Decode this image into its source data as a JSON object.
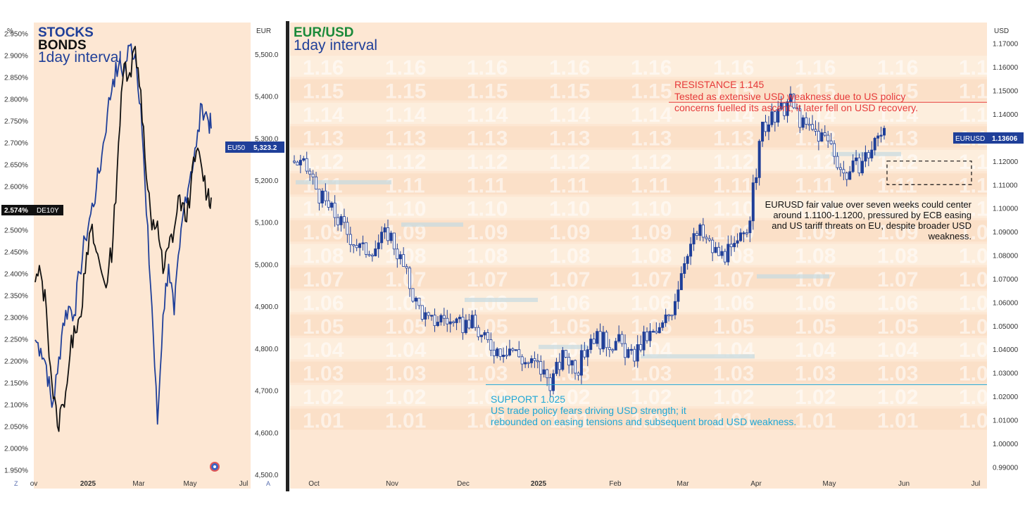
{
  "left_panel": {
    "stocks_label": "STOCKS",
    "bonds_label": "BONDS",
    "interval_label": "1day interval",
    "left_axis_unit": "%",
    "right_axis_unit": "EUR",
    "left_axis_ticks": [
      "2.950%",
      "2.900%",
      "2.850%",
      "2.800%",
      "2.750%",
      "2.700%",
      "2.650%",
      "2.600%",
      "2.550%",
      "2.500%",
      "2.450%",
      "2.400%",
      "2.350%",
      "2.300%",
      "2.250%",
      "2.200%",
      "2.150%",
      "2.100%",
      "2.050%",
      "2.000%",
      "1.950%"
    ],
    "right_axis_ticks": [
      "5,500.0",
      "5,400.0",
      "5,300.0",
      "5,200.0",
      "5,100.0",
      "5,000.0",
      "4,900.0",
      "4,800.0",
      "4,700.0",
      "4,600.0",
      "4,500.0"
    ],
    "x_ticks": [
      "ov",
      "2025",
      "Mar",
      "May",
      "Jul"
    ],
    "corner_left": "Z",
    "corner_right": "A",
    "bond_badge": {
      "value": "2.574%",
      "ticker": "DE10Y"
    },
    "stock_badge": {
      "ticker": "EU50",
      "value": "5,323.2"
    },
    "colors": {
      "stocks": "#1f3f99",
      "bonds": "#111111",
      "background": "#fde7d3"
    }
  },
  "right_panel": {
    "title": "EUR/USD",
    "interval_label": "1day interval",
    "axis_unit": "USD",
    "axis_ticks": [
      "1.17000",
      "1.16000",
      "1.15000",
      "1.14000",
      "1.13000",
      "1.12000",
      "1.11000",
      "1.10000",
      "1.09000",
      "1.08000",
      "1.07000",
      "1.06000",
      "1.05000",
      "1.04000",
      "1.03000",
      "1.02000",
      "1.01000",
      "1.00000",
      "0.99000"
    ],
    "x_ticks": [
      "Oct",
      "Nov",
      "Dec",
      "2025",
      "Feb",
      "Mar",
      "Apr",
      "May",
      "Jun",
      "Jul"
    ],
    "watermark_levels": [
      "1.16",
      "1.15",
      "1.14",
      "1.13",
      "1.12",
      "1.11",
      "1.10",
      "1.09",
      "1.08",
      "1.07",
      "1.06",
      "1.05",
      "1.04",
      "1.03",
      "1.02",
      "1.01"
    ],
    "price_badge": {
      "ticker": "EURUSD",
      "value": "1.13606"
    },
    "resistance": {
      "title": "RESISTANCE 1.145",
      "line1": "Tested as extensive USD weakness due to US policy",
      "line2": "concerns fuelled its ascent; it later fell on USD recovery."
    },
    "support": {
      "title": "SUPPORT 1.025",
      "line1": "US trade policy fears driving USD strength; it",
      "line2": "rebounded on easing tensions and subsequent broad USD weakness."
    },
    "forecast": {
      "line1": "EURUSD fair value over seven weeks could center",
      "line2": "around 1.1100-1.1200, pressured by ECB easing",
      "line3": "and US tariff threats on EU, despite broader USD",
      "line4": "weakness."
    },
    "colors": {
      "up": "#1f3f99",
      "down": "#ffffff",
      "resistance": "#e63a3a",
      "support": "#1ea7d6",
      "background": "#fde7d3"
    }
  },
  "chart_data": [
    {
      "type": "line",
      "title": "",
      "series": [
        {
          "name": "STOCKS",
          "axis": "right",
          "unit": "EUR",
          "x": [
            0,
            6,
            12,
            18,
            24,
            30,
            36,
            42,
            48,
            54,
            60,
            66,
            72,
            78,
            84,
            90,
            96,
            102,
            108,
            114,
            120,
            126,
            132,
            138,
            144,
            150,
            156,
            162,
            168,
            174,
            180,
            186,
            190
          ],
          "y": [
            4820,
            4800,
            4760,
            4660,
            4740,
            4860,
            4900,
            4880,
            4980,
            5060,
            5120,
            5180,
            5260,
            5360,
            5440,
            5470,
            5460,
            5520,
            5500,
            5380,
            5120,
            4900,
            4620,
            4880,
            5000,
            4880,
            5040,
            5160,
            5220,
            5280,
            5380,
            5350,
            5323
          ]
        },
        {
          "name": "BONDS",
          "axis": "left",
          "unit": "%",
          "x": [
            0,
            6,
            12,
            18,
            24,
            30,
            36,
            42,
            48,
            54,
            60,
            66,
            72,
            78,
            84,
            90,
            96,
            102,
            108,
            114,
            120,
            126,
            132,
            138,
            144,
            150,
            156,
            162,
            168,
            174,
            180,
            186,
            190
          ],
          "y": [
            2.38,
            2.4,
            2.32,
            2.15,
            2.05,
            2.1,
            2.18,
            2.28,
            2.3,
            2.4,
            2.5,
            2.45,
            2.4,
            2.38,
            2.48,
            2.7,
            2.88,
            2.86,
            2.92,
            2.82,
            2.62,
            2.5,
            2.52,
            2.4,
            2.46,
            2.5,
            2.58,
            2.52,
            2.6,
            2.68,
            2.64,
            2.58,
            2.574
          ]
        }
      ],
      "x_ticks": [
        "ov",
        "2025",
        "Mar",
        "May",
        "Jul"
      ],
      "left_ylim": [
        1.93,
        2.97
      ],
      "right_ylim": [
        4490,
        5570
      ]
    },
    {
      "type": "candlestick",
      "title": "EUR/USD",
      "x_ticks": [
        "Oct",
        "Nov",
        "Dec",
        "2025",
        "Feb",
        "Mar",
        "Apr",
        "May",
        "Jun",
        "Jul"
      ],
      "ylim": [
        0.985,
        1.178
      ],
      "close_path": {
        "x": [
          0,
          6,
          12,
          18,
          24,
          30,
          36,
          42,
          48,
          54,
          60,
          66,
          72,
          78,
          84,
          90,
          96,
          102,
          108,
          114,
          120,
          126,
          132,
          138,
          144,
          150,
          156,
          162,
          168,
          174,
          180,
          186,
          190,
          196,
          202,
          208,
          214,
          220,
          226,
          232,
          238
        ],
        "y": [
          1.12,
          1.116,
          1.104,
          1.097,
          1.089,
          1.082,
          1.084,
          1.09,
          1.076,
          1.06,
          1.051,
          1.054,
          1.049,
          1.052,
          1.044,
          1.04,
          1.041,
          1.035,
          1.033,
          1.026,
          1.038,
          1.032,
          1.046,
          1.043,
          1.043,
          1.036,
          1.045,
          1.047,
          1.058,
          1.082,
          1.09,
          1.082,
          1.08,
          1.082,
          1.095,
          1.135,
          1.138,
          1.146,
          1.135,
          1.132,
          1.128
        ]
      },
      "close_path_tail": {
        "x": [
          244,
          250,
          256,
          262
        ],
        "y": [
          1.114,
          1.118,
          1.124,
          1.136
        ]
      },
      "resistance_level": 1.145,
      "support_level": 1.025,
      "forecast_range": [
        1.11,
        1.12
      ]
    }
  ]
}
